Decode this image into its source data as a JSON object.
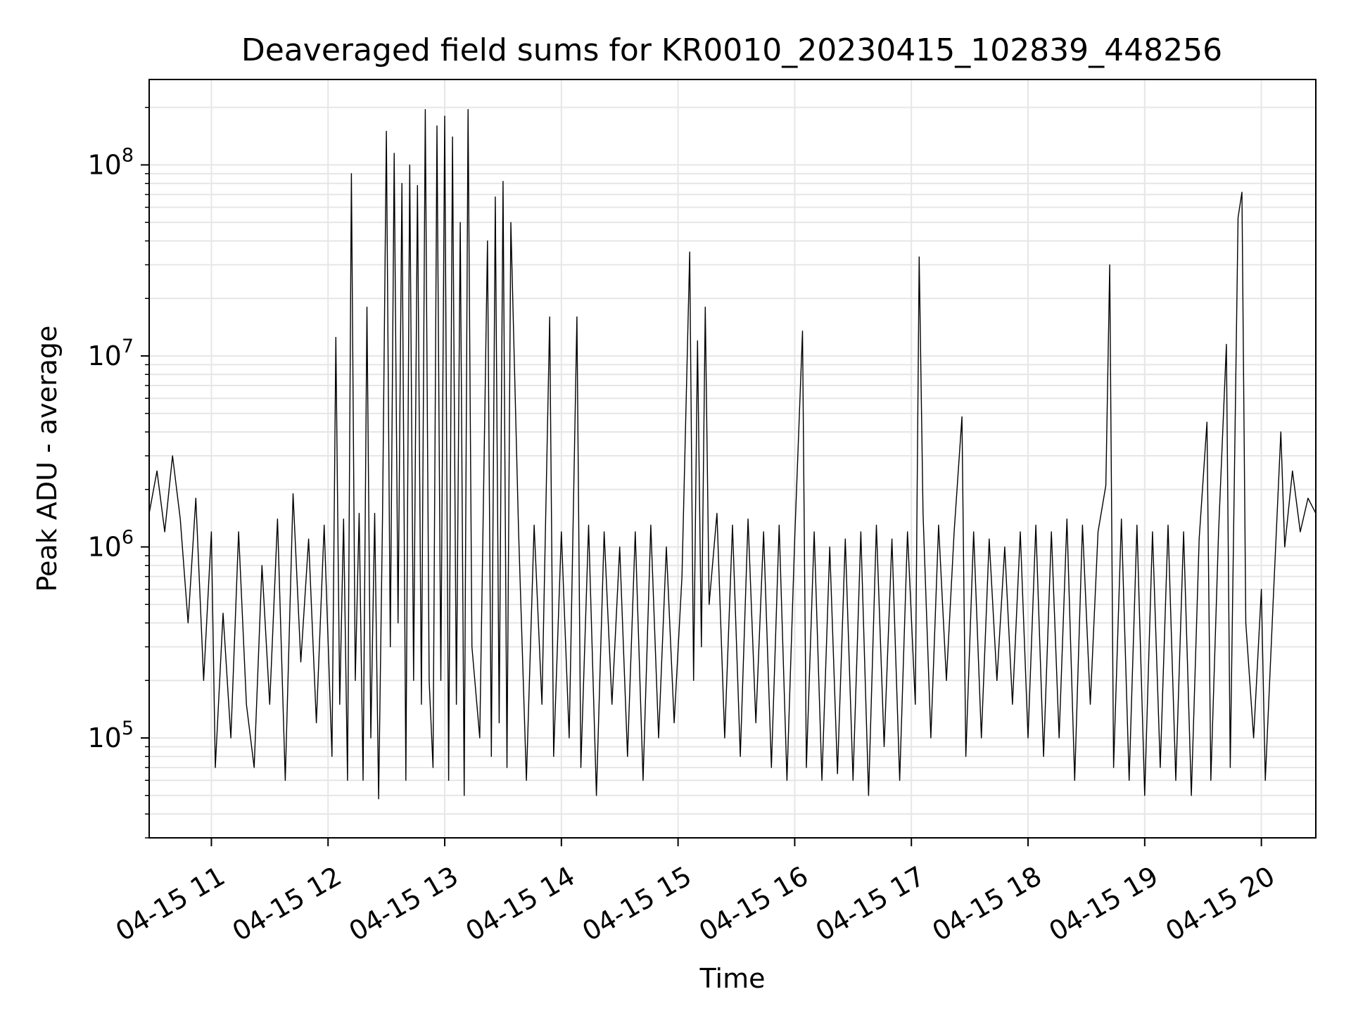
{
  "chart_data": {
    "type": "line",
    "title": "Deaveraged field sums for KR0010_20230415_102839_448256",
    "xlabel": "Time",
    "ylabel": "Peak ADU - average",
    "yscale": "log",
    "grid": true,
    "line_color": "#000000",
    "grid_color": "#e6e6e6",
    "xlim": [
      "2023-04-15 10:28",
      "2023-04-15 20:28"
    ],
    "ylim": [
      30000,
      280000000
    ],
    "x_ticks": [
      "2023-04-15 11:00",
      "2023-04-15 12:00",
      "2023-04-15 13:00",
      "2023-04-15 14:00",
      "2023-04-15 15:00",
      "2023-04-15 16:00",
      "2023-04-15 17:00",
      "2023-04-15 18:00",
      "2023-04-15 19:00",
      "2023-04-15 20:00"
    ],
    "x_tick_labels": [
      "04-15 11",
      "04-15 12",
      "04-15 13",
      "04-15 14",
      "04-15 15",
      "04-15 16",
      "04-15 17",
      "04-15 18",
      "04-15 19",
      "04-15 20"
    ],
    "y_ticks": [
      {
        "value": 100000,
        "base": "10",
        "exp": "5"
      },
      {
        "value": 1000000,
        "base": "10",
        "exp": "6"
      },
      {
        "value": 10000000,
        "base": "10",
        "exp": "7"
      },
      {
        "value": 100000000,
        "base": "10",
        "exp": "8"
      }
    ],
    "series": [
      {
        "points": [
          [
            "2023-04-15 10:28",
            1500000
          ],
          [
            "2023-04-15 10:32",
            2500000
          ],
          [
            "2023-04-15 10:36",
            1200000
          ],
          [
            "2023-04-15 10:40",
            3000000
          ],
          [
            "2023-04-15 10:44",
            1400000
          ],
          [
            "2023-04-15 10:48",
            400000
          ],
          [
            "2023-04-15 10:52",
            1800000
          ],
          [
            "2023-04-15 10:56",
            200000
          ],
          [
            "2023-04-15 11:00",
            1200000
          ],
          [
            "2023-04-15 11:02",
            70000
          ],
          [
            "2023-04-15 11:06",
            450000
          ],
          [
            "2023-04-15 11:10",
            100000
          ],
          [
            "2023-04-15 11:14",
            1200000
          ],
          [
            "2023-04-15 11:18",
            150000
          ],
          [
            "2023-04-15 11:22",
            70000
          ],
          [
            "2023-04-15 11:26",
            800000
          ],
          [
            "2023-04-15 11:30",
            150000
          ],
          [
            "2023-04-15 11:34",
            1400000
          ],
          [
            "2023-04-15 11:38",
            60000
          ],
          [
            "2023-04-15 11:42",
            1900000
          ],
          [
            "2023-04-15 11:46",
            250000
          ],
          [
            "2023-04-15 11:50",
            1100000
          ],
          [
            "2023-04-15 11:54",
            120000
          ],
          [
            "2023-04-15 11:58",
            1300000
          ],
          [
            "2023-04-15 12:02",
            80000
          ],
          [
            "2023-04-15 12:04",
            12500000
          ],
          [
            "2023-04-15 12:06",
            150000
          ],
          [
            "2023-04-15 12:08",
            1400000
          ],
          [
            "2023-04-15 12:10",
            60000
          ],
          [
            "2023-04-15 12:12",
            90000000
          ],
          [
            "2023-04-15 12:14",
            200000
          ],
          [
            "2023-04-15 12:16",
            1500000
          ],
          [
            "2023-04-15 12:18",
            60000
          ],
          [
            "2023-04-15 12:20",
            18000000
          ],
          [
            "2023-04-15 12:22",
            100000
          ],
          [
            "2023-04-15 12:24",
            1500000
          ],
          [
            "2023-04-15 12:26",
            48000
          ],
          [
            "2023-04-15 12:28",
            1400000
          ],
          [
            "2023-04-15 12:30",
            150000000
          ],
          [
            "2023-04-15 12:32",
            300000
          ],
          [
            "2023-04-15 12:34",
            115000000
          ],
          [
            "2023-04-15 12:36",
            400000
          ],
          [
            "2023-04-15 12:38",
            80000000
          ],
          [
            "2023-04-15 12:40",
            60000
          ],
          [
            "2023-04-15 12:42",
            100000000
          ],
          [
            "2023-04-15 12:44",
            200000
          ],
          [
            "2023-04-15 12:46",
            78000000
          ],
          [
            "2023-04-15 12:48",
            150000
          ],
          [
            "2023-04-15 12:50",
            195000000
          ],
          [
            "2023-04-15 12:52",
            200000
          ],
          [
            "2023-04-15 12:54",
            70000
          ],
          [
            "2023-04-15 12:56",
            160000000
          ],
          [
            "2023-04-15 12:58",
            200000
          ],
          [
            "2023-04-15 13:00",
            180000000
          ],
          [
            "2023-04-15 13:02",
            60000
          ],
          [
            "2023-04-15 13:04",
            140000000
          ],
          [
            "2023-04-15 13:06",
            150000
          ],
          [
            "2023-04-15 13:08",
            50000000
          ],
          [
            "2023-04-15 13:10",
            50000
          ],
          [
            "2023-04-15 13:12",
            195000000
          ],
          [
            "2023-04-15 13:14",
            300000
          ],
          [
            "2023-04-15 13:18",
            100000
          ],
          [
            "2023-04-15 13:22",
            40000000
          ],
          [
            "2023-04-15 13:24",
            80000
          ],
          [
            "2023-04-15 13:26",
            68000000
          ],
          [
            "2023-04-15 13:28",
            120000
          ],
          [
            "2023-04-15 13:30",
            82000000
          ],
          [
            "2023-04-15 13:32",
            70000
          ],
          [
            "2023-04-15 13:34",
            50000000
          ],
          [
            "2023-04-15 13:38",
            1200000
          ],
          [
            "2023-04-15 13:42",
            60000
          ],
          [
            "2023-04-15 13:46",
            1300000
          ],
          [
            "2023-04-15 13:50",
            150000
          ],
          [
            "2023-04-15 13:54",
            16000000
          ],
          [
            "2023-04-15 13:56",
            80000
          ],
          [
            "2023-04-15 14:00",
            1200000
          ],
          [
            "2023-04-15 14:04",
            100000
          ],
          [
            "2023-04-15 14:08",
            16000000
          ],
          [
            "2023-04-15 14:10",
            70000
          ],
          [
            "2023-04-15 14:14",
            1300000
          ],
          [
            "2023-04-15 14:18",
            50000
          ],
          [
            "2023-04-15 14:22",
            1200000
          ],
          [
            "2023-04-15 14:26",
            150000
          ],
          [
            "2023-04-15 14:30",
            1000000
          ],
          [
            "2023-04-15 14:34",
            80000
          ],
          [
            "2023-04-15 14:38",
            1200000
          ],
          [
            "2023-04-15 14:42",
            60000
          ],
          [
            "2023-04-15 14:46",
            1300000
          ],
          [
            "2023-04-15 14:50",
            100000
          ],
          [
            "2023-04-15 14:54",
            1000000
          ],
          [
            "2023-04-15 14:58",
            120000
          ],
          [
            "2023-04-15 15:02",
            700000
          ],
          [
            "2023-04-15 15:06",
            35000000
          ],
          [
            "2023-04-15 15:08",
            200000
          ],
          [
            "2023-04-15 15:10",
            12000000
          ],
          [
            "2023-04-15 15:12",
            300000
          ],
          [
            "2023-04-15 15:14",
            18000000
          ],
          [
            "2023-04-15 15:16",
            500000
          ],
          [
            "2023-04-15 15:20",
            1500000
          ],
          [
            "2023-04-15 15:24",
            100000
          ],
          [
            "2023-04-15 15:28",
            1300000
          ],
          [
            "2023-04-15 15:32",
            80000
          ],
          [
            "2023-04-15 15:36",
            1400000
          ],
          [
            "2023-04-15 15:40",
            120000
          ],
          [
            "2023-04-15 15:44",
            1200000
          ],
          [
            "2023-04-15 15:48",
            70000
          ],
          [
            "2023-04-15 15:52",
            1300000
          ],
          [
            "2023-04-15 15:56",
            60000
          ],
          [
            "2023-04-15 16:00",
            1100000
          ],
          [
            "2023-04-15 16:04",
            13500000
          ],
          [
            "2023-04-15 16:06",
            70000
          ],
          [
            "2023-04-15 16:10",
            1200000
          ],
          [
            "2023-04-15 16:14",
            60000
          ],
          [
            "2023-04-15 16:18",
            1000000
          ],
          [
            "2023-04-15 16:22",
            65000
          ],
          [
            "2023-04-15 16:26",
            1100000
          ],
          [
            "2023-04-15 16:30",
            60000
          ],
          [
            "2023-04-15 16:34",
            1200000
          ],
          [
            "2023-04-15 16:38",
            50000
          ],
          [
            "2023-04-15 16:42",
            1300000
          ],
          [
            "2023-04-15 16:46",
            90000
          ],
          [
            "2023-04-15 16:50",
            1100000
          ],
          [
            "2023-04-15 16:54",
            60000
          ],
          [
            "2023-04-15 16:58",
            1200000
          ],
          [
            "2023-04-15 17:02",
            150000
          ],
          [
            "2023-04-15 17:04",
            33000000
          ],
          [
            "2023-04-15 17:06",
            1500000
          ],
          [
            "2023-04-15 17:10",
            100000
          ],
          [
            "2023-04-15 17:14",
            1300000
          ],
          [
            "2023-04-15 17:18",
            200000
          ],
          [
            "2023-04-15 17:22",
            1200000
          ],
          [
            "2023-04-15 17:26",
            4800000
          ],
          [
            "2023-04-15 17:28",
            80000
          ],
          [
            "2023-04-15 17:32",
            1200000
          ],
          [
            "2023-04-15 17:36",
            100000
          ],
          [
            "2023-04-15 17:40",
            1100000
          ],
          [
            "2023-04-15 17:44",
            200000
          ],
          [
            "2023-04-15 17:48",
            1000000
          ],
          [
            "2023-04-15 17:52",
            150000
          ],
          [
            "2023-04-15 17:56",
            1200000
          ],
          [
            "2023-04-15 18:00",
            100000
          ],
          [
            "2023-04-15 18:04",
            1300000
          ],
          [
            "2023-04-15 18:08",
            80000
          ],
          [
            "2023-04-15 18:12",
            1200000
          ],
          [
            "2023-04-15 18:16",
            100000
          ],
          [
            "2023-04-15 18:20",
            1400000
          ],
          [
            "2023-04-15 18:24",
            60000
          ],
          [
            "2023-04-15 18:28",
            1300000
          ],
          [
            "2023-04-15 18:32",
            150000
          ],
          [
            "2023-04-15 18:36",
            1200000
          ],
          [
            "2023-04-15 18:40",
            2100000
          ],
          [
            "2023-04-15 18:42",
            30000000
          ],
          [
            "2023-04-15 18:44",
            70000
          ],
          [
            "2023-04-15 18:48",
            1400000
          ],
          [
            "2023-04-15 18:52",
            60000
          ],
          [
            "2023-04-15 18:56",
            1300000
          ],
          [
            "2023-04-15 19:00",
            50000
          ],
          [
            "2023-04-15 19:04",
            1200000
          ],
          [
            "2023-04-15 19:08",
            70000
          ],
          [
            "2023-04-15 19:12",
            1300000
          ],
          [
            "2023-04-15 19:16",
            60000
          ],
          [
            "2023-04-15 19:20",
            1200000
          ],
          [
            "2023-04-15 19:24",
            50000
          ],
          [
            "2023-04-15 19:28",
            1100000
          ],
          [
            "2023-04-15 19:32",
            4500000
          ],
          [
            "2023-04-15 19:34",
            60000
          ],
          [
            "2023-04-15 19:38",
            1200000
          ],
          [
            "2023-04-15 19:42",
            11500000
          ],
          [
            "2023-04-15 19:44",
            70000
          ],
          [
            "2023-04-15 19:48",
            53000000
          ],
          [
            "2023-04-15 19:50",
            72000000
          ],
          [
            "2023-04-15 19:52",
            400000
          ],
          [
            "2023-04-15 19:56",
            100000
          ],
          [
            "2023-04-15 20:00",
            600000
          ],
          [
            "2023-04-15 20:02",
            60000
          ],
          [
            "2023-04-15 20:06",
            500000
          ],
          [
            "2023-04-15 20:10",
            4000000
          ],
          [
            "2023-04-15 20:12",
            1000000
          ],
          [
            "2023-04-15 20:16",
            2500000
          ],
          [
            "2023-04-15 20:20",
            1200000
          ],
          [
            "2023-04-15 20:24",
            1800000
          ],
          [
            "2023-04-15 20:28",
            1500000
          ]
        ]
      }
    ]
  }
}
